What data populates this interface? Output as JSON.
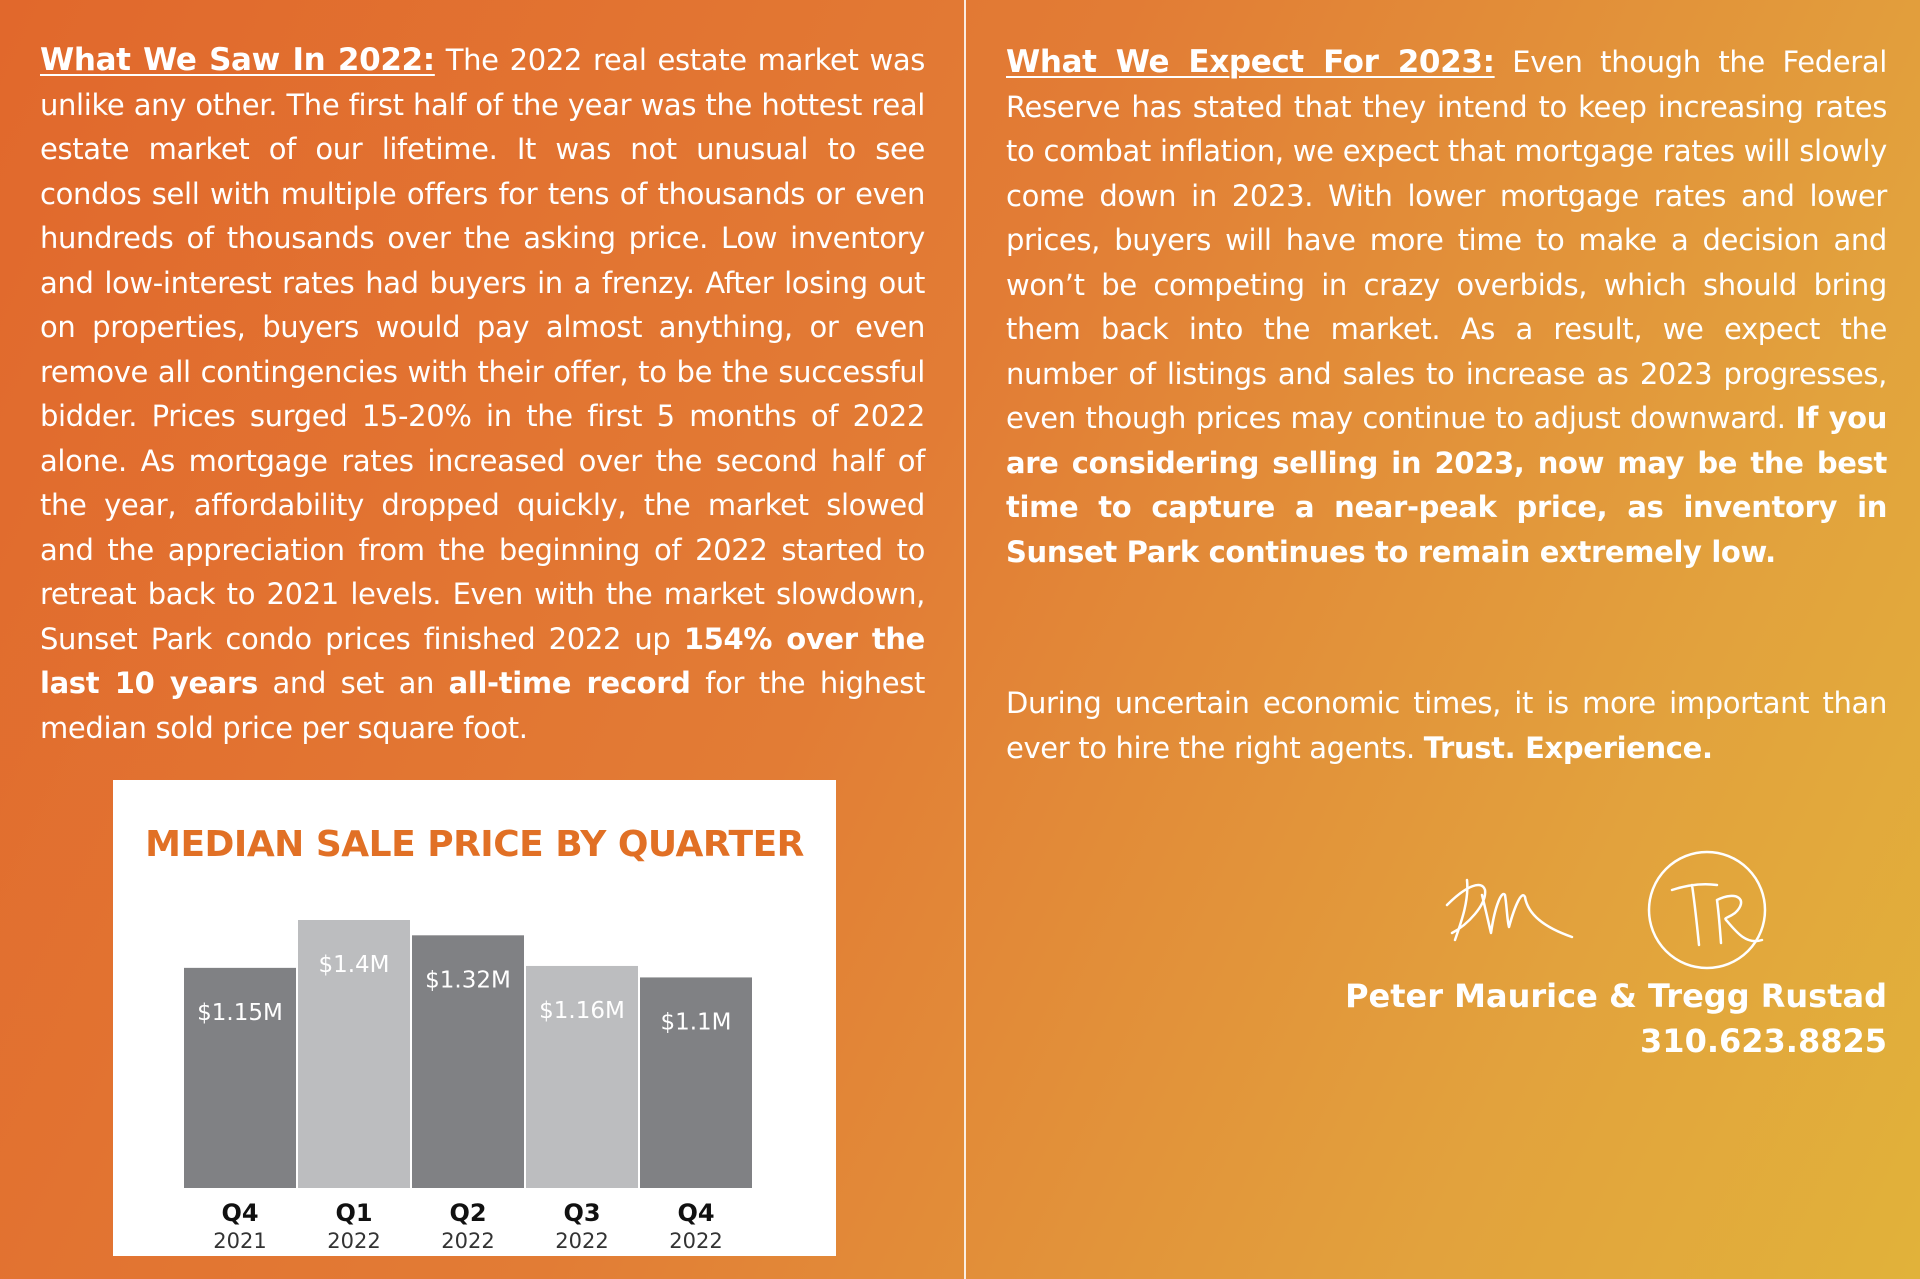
{
  "left": {
    "heading": "What We Saw In 2022:",
    "text_1": " The 2022 real estate market was unlike any other. The first half of the year was the hottest real estate market of our lifetime. It was not unusual to see condos sell with multiple offers for tens of thousands or even hundreds of thousands over the asking price. Low inventory and low-interest rates had buyers in a frenzy. After losing out on properties, buyers would pay almost anything, or even remove all contingencies with their offer, to be the successful bidder. Prices surged 15-20% in the first 5 months of 2022 alone. As mortgage rates increased over the second half of the year, affordability dropped quickly, the market slowed and the appreciation from the beginning of 2022 started to retreat back to 2021 levels. Even with the market slowdown, Sunset Park condo prices finished 2022 up ",
    "bold_1": "154% over the last 10 years",
    "text_2": " and set an ",
    "bold_2": "all-time record",
    "text_3": " for the highest median sold price per square foot."
  },
  "right": {
    "heading": "What We Expect For 2023:",
    "text_1": " Even though the Federal Reserve has stated that they intend to keep increasing rates to combat inflation, we expect that mortgage rates will slowly come down in 2023. With lower mortgage rates and lower prices, buyers will have more time to make a decision and won’t be competing in crazy overbids, which should bring them back into the market. As a result, we expect the number of listings and sales to increase as 2023 progresses, even though prices may continue to adjust downward. ",
    "bold_1": "If you are considering selling in 2023, now may be the best time to capture a near-peak price, as inventory in Sunset Park continues to remain extremely low.",
    "text_2": "During uncertain economic times, it is more important than ever to hire the right agents. ",
    "bold_2": "Trust. Experience."
  },
  "signature": {
    "names": "Peter Maurice & Tregg Rustad",
    "phone": "310.623.8825"
  },
  "chart_data": {
    "type": "bar",
    "title": "MEDIAN SALE PRICE BY QUARTER",
    "categories": [
      "Q4 2021",
      "Q1 2022",
      "Q2 2022",
      "Q3 2022",
      "Q4 2022"
    ],
    "quarters": [
      "Q4",
      "Q1",
      "Q2",
      "Q3",
      "Q4"
    ],
    "years": [
      "2021",
      "2022",
      "2022",
      "2022",
      "2022"
    ],
    "values": [
      1.15,
      1.4,
      1.32,
      1.16,
      1.1
    ],
    "labels": [
      "$1.15M",
      "$1.4M",
      "$1.32M",
      "$1.16M",
      "$1.1M"
    ],
    "colors": [
      "#808184",
      "#bcbdbf",
      "#808184",
      "#bcbdbf",
      "#808184"
    ],
    "unit": "$M",
    "ylim": [
      0,
      1.5
    ],
    "xlabel": "",
    "ylabel": "",
    "grid": false
  }
}
